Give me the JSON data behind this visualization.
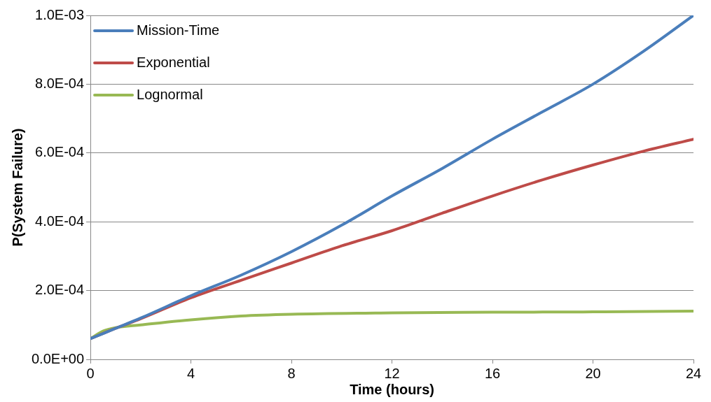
{
  "chart_data": {
    "type": "line",
    "xlabel": "Time (hours)",
    "ylabel": "P(System Failure)",
    "x": [
      0,
      1,
      2,
      4,
      6,
      8,
      10,
      12,
      14,
      16,
      18,
      20,
      22,
      24
    ],
    "series": [
      {
        "name": "Mission-Time",
        "color": "#4a7ebb",
        "values": [
          6e-05,
          9e-05,
          0.00012,
          0.000185,
          0.000245,
          0.000313,
          0.00039,
          0.000475,
          0.000555,
          0.00064,
          0.00072,
          0.0008,
          0.000895,
          0.001
        ]
      },
      {
        "name": "Exponential",
        "color": "#be4b48",
        "values": [
          6e-05,
          9e-05,
          0.000118,
          0.000179,
          0.00023,
          0.00028,
          0.00033,
          0.000374,
          0.000425,
          0.000475,
          0.000522,
          0.000565,
          0.000605,
          0.00064
        ]
      },
      {
        "name": "Lognormal",
        "color": "#98b954",
        "x": [
          0,
          0.5,
          1,
          2,
          4,
          6,
          8,
          12,
          16,
          20,
          24
        ],
        "values": [
          6e-05,
          8.2e-05,
          9.2e-05,
          0.0001,
          0.000115,
          0.000126,
          0.000131,
          0.000135,
          0.000137,
          0.000138,
          0.00014
        ]
      }
    ],
    "xlim": [
      0,
      24
    ],
    "xticks": [
      0,
      4,
      8,
      12,
      16,
      20,
      24
    ],
    "ylim": [
      0,
      0.001
    ],
    "yticks": [
      {
        "value": 0,
        "label": "0.0E+00"
      },
      {
        "value": 0.0002,
        "label": "2.0E-04"
      },
      {
        "value": 0.0004,
        "label": "4.0E-04"
      },
      {
        "value": 0.0006,
        "label": "6.0E-04"
      },
      {
        "value": 0.0008,
        "label": "8.0E-04"
      },
      {
        "value": 0.001,
        "label": "1.0E-03"
      }
    ],
    "grid": "y",
    "legend": "top left",
    "marker": "none",
    "line_style": "solid"
  }
}
